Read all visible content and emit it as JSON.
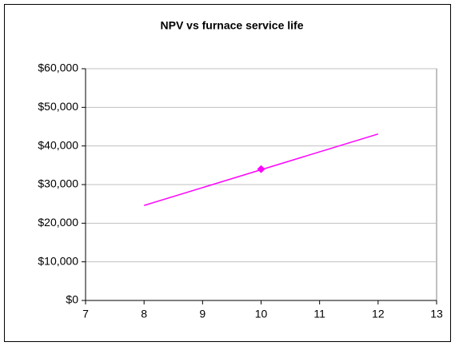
{
  "chart_data": {
    "type": "scatter",
    "title": "NPV vs furnace service life",
    "series": [
      {
        "color": "#ff00ff",
        "line": true,
        "marker": false,
        "x": [
          8,
          12
        ],
        "values": [
          24600,
          43100
        ]
      },
      {
        "color": "#ff00ff",
        "line": false,
        "marker": true,
        "x": [
          10
        ],
        "values": [
          34000
        ]
      }
    ],
    "xlim": [
      7,
      13
    ],
    "xticks": [
      7,
      8,
      9,
      10,
      11,
      12,
      13
    ],
    "ylim": [
      0,
      60000
    ],
    "yticks": [
      {
        "value": 0,
        "label": "$0"
      },
      {
        "value": 10000,
        "label": "$10,000"
      },
      {
        "value": 20000,
        "label": "$20,000"
      },
      {
        "value": 30000,
        "label": "$30,000"
      },
      {
        "value": 40000,
        "label": "$40,000"
      },
      {
        "value": 50000,
        "label": "$50,000"
      },
      {
        "value": 60000,
        "label": "$60,000"
      }
    ],
    "grid": true
  }
}
